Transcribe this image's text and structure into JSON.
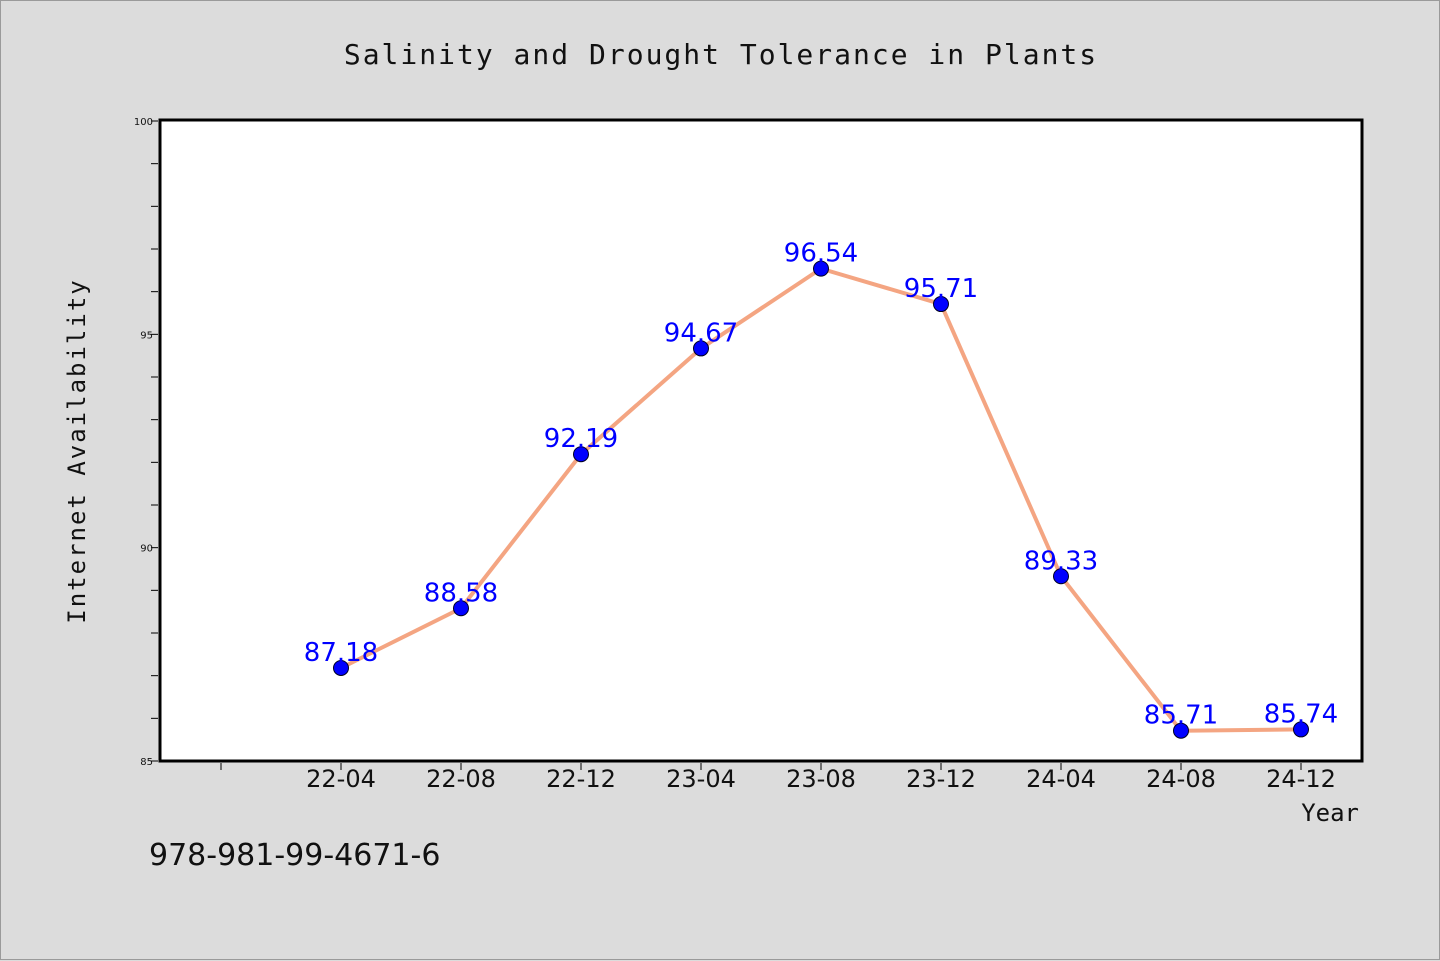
{
  "chart_data": {
    "type": "line",
    "title": "Salinity and Drought Tolerance in Plants",
    "xlabel": "Year",
    "ylabel": "Internet Availability",
    "categories": [
      "22-04",
      "22-08",
      "22-12",
      "23-04",
      "23-08",
      "23-12",
      "24-04",
      "24-08",
      "24-12"
    ],
    "series": [
      {
        "values": [
          87.18,
          88.58,
          92.19,
          94.67,
          96.54,
          95.71,
          89.33,
          85.71,
          85.74
        ],
        "labels": [
          "87.18",
          "88.58",
          "92.19",
          "94.67",
          "96.54",
          "95.71",
          "89.33",
          "85.71",
          "85.74"
        ],
        "line_color": "#f4a582",
        "marker_color": "#0000ff"
      }
    ],
    "ylim": [
      85,
      100
    ],
    "y_ticks": [
      "85",
      "90",
      "95",
      "100"
    ],
    "grid": false,
    "legend": "none",
    "label_color": "#0000ff"
  },
  "footer_text": "978-981-99-4671-6"
}
